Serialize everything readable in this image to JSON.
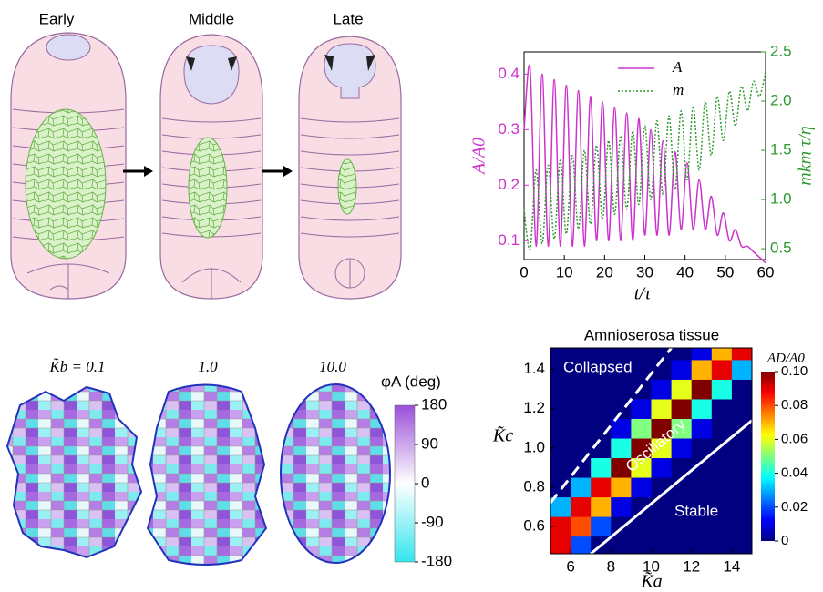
{
  "stages": [
    "Early",
    "Middle",
    "Late"
  ],
  "cell_panels": {
    "labels": [
      "K̃b = 0.1",
      "1.0",
      "10.0"
    ],
    "colorbar": {
      "label": "φA (deg)",
      "lim": [
        -180,
        180
      ],
      "ticks": [
        180,
        90,
        0,
        -90,
        -180
      ],
      "colors": [
        "#33e5ee",
        "#ffffff",
        "#9b4fd8"
      ]
    }
  },
  "chart_data": [
    {
      "type": "line",
      "x_label": "t/τ",
      "y_label": "A/A0",
      "y2_label": "mkm τ/η",
      "x": [
        0,
        1.5,
        3,
        4.5,
        6,
        7.5,
        9,
        10.5,
        12,
        13.5,
        15,
        16.5,
        18,
        19.5,
        21,
        22.5,
        24,
        25.5,
        27,
        28.5,
        30,
        31.5,
        33,
        34.5,
        36,
        37.5,
        39,
        40.5,
        42,
        43.5,
        45,
        46.5,
        48,
        49.5,
        51,
        52.5,
        54,
        55.5,
        57,
        58.5,
        60
      ],
      "xlim": [
        0,
        60
      ],
      "xticks": [
        0,
        10,
        20,
        30,
        40,
        50,
        60
      ],
      "ylim": [
        0.066,
        0.44
      ],
      "yticks": [
        0.1,
        0.2,
        0.3,
        0.4
      ],
      "y2lim": [
        0.39,
        2.5
      ],
      "y2ticks": [
        0.5,
        {
          "value": 1,
          "label": "1.0"
        },
        1.5,
        {
          "value": 2,
          "label": "2.0"
        },
        2.5
      ],
      "series": [
        {
          "name": "A",
          "color": "#cc33cc",
          "line_style": "solid",
          "values": [
            0.3,
            0.41,
            0.09,
            0.4,
            0.09,
            0.39,
            0.09,
            0.38,
            0.09,
            0.37,
            0.09,
            0.36,
            0.1,
            0.35,
            0.1,
            0.34,
            0.1,
            0.33,
            0.1,
            0.32,
            0.11,
            0.3,
            0.11,
            0.28,
            0.11,
            0.26,
            0.12,
            0.24,
            0.12,
            0.21,
            0.12,
            0.18,
            0.11,
            0.15,
            0.1,
            0.12,
            0.09,
            0.09,
            0.08,
            0.07,
            0.06
          ]
        },
        {
          "name": "m",
          "color": "#2e9a2e",
          "line_style": "dotted",
          "axis": "y2",
          "values": [
            0.9,
            0.5,
            1.3,
            0.55,
            1.35,
            0.6,
            1.4,
            0.65,
            1.45,
            0.7,
            1.5,
            0.75,
            1.55,
            0.8,
            1.6,
            0.85,
            1.65,
            0.9,
            1.7,
            0.95,
            1.75,
            1.0,
            1.8,
            1.05,
            1.85,
            1.1,
            1.9,
            1.2,
            1.95,
            1.3,
            2.0,
            1.45,
            2.05,
            1.6,
            2.1,
            1.75,
            2.15,
            1.9,
            2.2,
            2.05,
            2.3
          ]
        }
      ]
    },
    {
      "type": "heatmap",
      "title": "Amnioserosa tissue",
      "x_label": "K̃a",
      "y_label": "K̃c",
      "x": [
        5.5,
        6.5,
        7.5,
        8.5,
        9.5,
        10.5,
        11.5,
        12.5,
        13.5,
        14.5
      ],
      "y": [
        0.5,
        0.6,
        0.7,
        0.8,
        0.9,
        1.0,
        1.1,
        1.2,
        1.3,
        1.4,
        1.5
      ],
      "z": [
        [
          0.09,
          0.02,
          0,
          0,
          0,
          0,
          0,
          0,
          0,
          0
        ],
        [
          0.09,
          0.08,
          0.02,
          0,
          0,
          0,
          0,
          0,
          0,
          0
        ],
        [
          0.03,
          0.09,
          0.07,
          0.01,
          0,
          0,
          0,
          0,
          0,
          0
        ],
        [
          0,
          0.03,
          0.09,
          0.07,
          0.01,
          0,
          0,
          0,
          0,
          0
        ],
        [
          0,
          0,
          0.04,
          0.1,
          0.06,
          0.01,
          0,
          0,
          0,
          0
        ],
        [
          0,
          0,
          0,
          0.04,
          0.1,
          0.06,
          0.01,
          0,
          0,
          0
        ],
        [
          0,
          0,
          0,
          0.01,
          0.05,
          0.1,
          0.05,
          0.01,
          0,
          0
        ],
        [
          0,
          0,
          0,
          0,
          0.01,
          0.06,
          0.1,
          0.04,
          0,
          0
        ],
        [
          0,
          0,
          0,
          0,
          0,
          0.01,
          0.06,
          0.1,
          0.04,
          0
        ],
        [
          0,
          0,
          0,
          0,
          0,
          0,
          0.01,
          0.07,
          0.09,
          0.03
        ],
        [
          0,
          0,
          0,
          0,
          0,
          0,
          0,
          0.01,
          0.07,
          0.09
        ]
      ],
      "xlim": [
        5,
        15
      ],
      "xticks": [
        6,
        8,
        10,
        12,
        14
      ],
      "ylim": [
        0.46,
        1.51
      ],
      "yticks": [
        0.6,
        0.8,
        {
          "value": 1,
          "label": "1.0"
        },
        1.2,
        1.4
      ],
      "colorbar": {
        "label": "AD/A0",
        "lim": [
          0,
          0.1
        ],
        "ticks": [
          0,
          0.02,
          0.04,
          0.06,
          0.08,
          {
            "value": 0.1,
            "label": "0.10"
          }
        ]
      },
      "annotations": [
        "Collapsed",
        "Oscillatory",
        "Stable"
      ],
      "boundaries": [
        {
          "x": [
            5,
            11
          ],
          "y": [
            0.72,
            1.51
          ],
          "line_style": "dashed"
        },
        {
          "x": [
            7,
            15
          ],
          "y": [
            0.46,
            1.14
          ],
          "line_style": "solid"
        }
      ]
    }
  ]
}
